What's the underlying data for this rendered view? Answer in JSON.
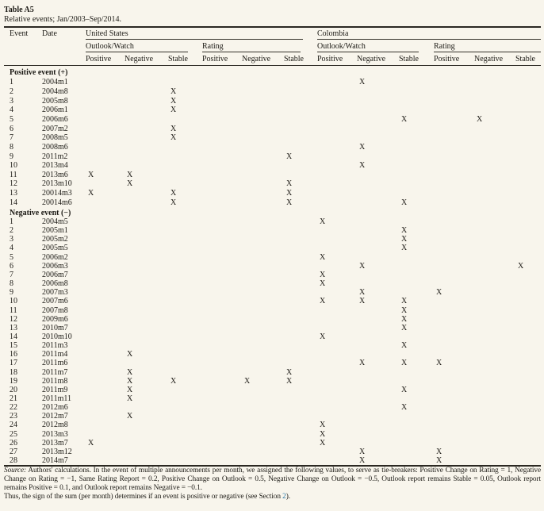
{
  "title": "Table A5",
  "subtitle": "Relative events; Jan/2003–Sep/2014.",
  "mark": "X",
  "columns": {
    "event": "Event",
    "date": "Date",
    "groups": [
      {
        "label": "United States",
        "subgroups": [
          {
            "label": "Outlook/Watch",
            "cols": [
              "Positive",
              "Negative",
              "Stable"
            ]
          },
          {
            "label": "Rating",
            "cols": [
              "Positive",
              "Negative",
              "Stable"
            ]
          }
        ]
      },
      {
        "label": "Colombia",
        "subgroups": [
          {
            "label": "Outlook/Watch",
            "cols": [
              "Positive",
              "Negative",
              "Stable"
            ]
          },
          {
            "label": "Rating",
            "cols": [
              "Positive",
              "Negative",
              "Stable"
            ]
          }
        ]
      }
    ],
    "mark_columns": [
      "us-outlook-positive",
      "us-outlook-negative",
      "us-outlook-stable",
      "us-rating-positive",
      "us-rating-negative",
      "us-rating-stable",
      "colombia-outlook-positive",
      "colombia-outlook-negative",
      "colombia-outlook-stable",
      "colombia-rating-positive",
      "colombia-rating-negative",
      "colombia-rating-stable"
    ]
  },
  "sections": [
    {
      "label": "Positive event (+)",
      "rows": [
        {
          "n": "1",
          "date": "2004m1",
          "marks": [
            7
          ]
        },
        {
          "n": "2",
          "date": "2004m8",
          "marks": [
            2
          ]
        },
        {
          "n": "3",
          "date": "2005m8",
          "marks": [
            2
          ]
        },
        {
          "n": "4",
          "date": "2006m1",
          "marks": [
            2
          ]
        },
        {
          "n": "5",
          "date": "2006m6",
          "marks": [
            8,
            10
          ]
        },
        {
          "n": "6",
          "date": "2007m2",
          "marks": [
            2
          ]
        },
        {
          "n": "7",
          "date": "2008m5",
          "marks": [
            2
          ]
        },
        {
          "n": "8",
          "date": "2008m6",
          "marks": [
            7
          ]
        },
        {
          "n": "9",
          "date": "2011m2",
          "marks": [
            5
          ]
        },
        {
          "n": "10",
          "date": "2013m4",
          "marks": [
            7
          ]
        },
        {
          "n": "11",
          "date": "2013m6",
          "marks": [
            0,
            1
          ]
        },
        {
          "n": "12",
          "date": "2013m10",
          "marks": [
            1,
            5
          ]
        },
        {
          "n": "13",
          "date": "20014m3",
          "marks": [
            0,
            2,
            5
          ]
        },
        {
          "n": "14",
          "date": "20014m6",
          "marks": [
            2,
            5,
            8
          ]
        }
      ]
    },
    {
      "label": "Negative event (−)",
      "rows": [
        {
          "n": "1",
          "date": "2004m5",
          "marks": [
            6
          ]
        },
        {
          "n": "2",
          "date": "2005m1",
          "marks": [
            8
          ]
        },
        {
          "n": "3",
          "date": "2005m2",
          "marks": [
            8
          ]
        },
        {
          "n": "4",
          "date": "2005m5",
          "marks": [
            8
          ]
        },
        {
          "n": "5",
          "date": "2006m2",
          "marks": [
            6
          ]
        },
        {
          "n": "6",
          "date": "2006m3",
          "marks": [
            7,
            11
          ]
        },
        {
          "n": "7",
          "date": "2006m7",
          "marks": [
            6
          ]
        },
        {
          "n": "8",
          "date": "2006m8",
          "marks": [
            6
          ]
        },
        {
          "n": "9",
          "date": "2007m3",
          "marks": [
            7,
            9
          ]
        },
        {
          "n": "10",
          "date": "2007m6",
          "marks": [
            6,
            7,
            8
          ]
        },
        {
          "n": "11",
          "date": "2007m8",
          "marks": [
            8
          ]
        },
        {
          "n": "12",
          "date": "2009m6",
          "marks": [
            8
          ]
        },
        {
          "n": "13",
          "date": "2010m7",
          "marks": [
            8
          ]
        },
        {
          "n": "14",
          "date": "2010m10",
          "marks": [
            6
          ]
        },
        {
          "n": "15",
          "date": "2011m3",
          "marks": [
            8
          ]
        },
        {
          "n": "16",
          "date": "2011m4",
          "marks": [
            1
          ]
        },
        {
          "n": "17",
          "date": "2011m6",
          "marks": [
            7,
            8,
            9
          ]
        },
        {
          "n": "18",
          "date": "2011m7",
          "marks": [
            1,
            5
          ]
        },
        {
          "n": "19",
          "date": "2011m8",
          "marks": [
            1,
            2,
            4,
            5
          ]
        },
        {
          "n": "20",
          "date": "2011m9",
          "marks": [
            1,
            8
          ]
        },
        {
          "n": "21",
          "date": "2011m11",
          "marks": [
            1
          ]
        },
        {
          "n": "22",
          "date": "2012m6",
          "marks": [
            8
          ]
        },
        {
          "n": "23",
          "date": "2012m7",
          "marks": [
            1
          ]
        },
        {
          "n": "24",
          "date": "2012m8",
          "marks": [
            6
          ]
        },
        {
          "n": "25",
          "date": "2013m3",
          "marks": [
            6
          ]
        },
        {
          "n": "26",
          "date": "2013m7",
          "marks": [
            0,
            6
          ]
        },
        {
          "n": "27",
          "date": "2013m12",
          "marks": [
            7,
            9
          ]
        },
        {
          "n": "28",
          "date": "2014m7",
          "marks": [
            7,
            9
          ]
        }
      ]
    }
  ],
  "footnote": {
    "source_label": "Source:",
    "source_text": " Authors' calculations. In the event of multiple announcements per month, we assigned the following values, to serve as tie-breakers: Positive Change on Rating = 1, Negative Change on Rating = −1, Same Rating Report = 0.2, Positive Change on Outlook = 0.5, Negative Change on Outlook = −0.5, Outlook report remains Stable = 0.05, Outlook report remains Positive = 0.1, and Outlook report remains Negative = −0.1.",
    "thus_pre": "Thus, the sign of the sum (per month) determines if an event is positive or negative (see Section ",
    "section_link": "2",
    "thus_post": ").",
    "colors": {
      "background": "#f8f5ec",
      "text": "#1c1a15",
      "link": "#2878a8"
    }
  }
}
